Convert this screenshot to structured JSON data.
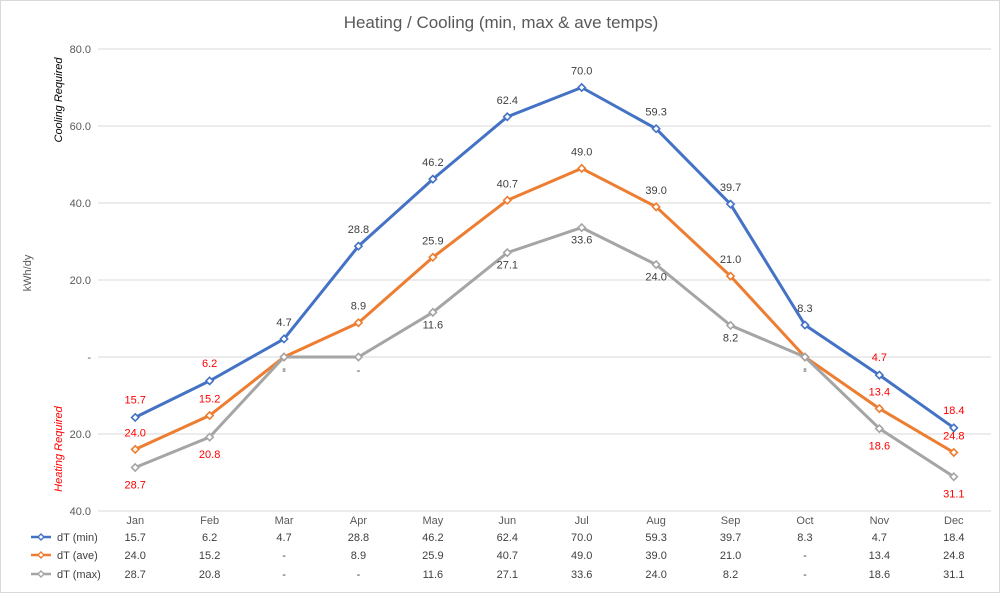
{
  "chart_data": {
    "type": "line",
    "title": "Heating / Cooling (min, max & ave temps)",
    "ylabel": "kWh/dy",
    "y_region_labels": {
      "cooling": "Cooling Required",
      "heating": "Heating Required"
    },
    "ylim": [
      -40,
      80
    ],
    "y_tick_values": [
      80,
      60,
      40,
      20,
      0,
      -20,
      -40
    ],
    "y_tick_labels": [
      "80.0",
      "60.0",
      "40.0",
      "20.0",
      "-",
      "20.0",
      "40.0"
    ],
    "categories": [
      "Jan",
      "Feb",
      "Mar",
      "Apr",
      "May",
      "Jun",
      "Jul",
      "Aug",
      "Sep",
      "Oct",
      "Nov",
      "Dec"
    ],
    "grid": true,
    "legend": "data-table-below",
    "series": [
      {
        "name": "dT (min)",
        "color": "#4472c4",
        "values": [
          -15.7,
          -6.2,
          4.7,
          28.8,
          46.2,
          62.4,
          70.0,
          59.3,
          39.7,
          8.3,
          -4.7,
          -18.4
        ],
        "labels": [
          "15.7",
          "6.2",
          "4.7",
          "28.8",
          "46.2",
          "62.4",
          "70.0",
          "59.3",
          "39.7",
          "8.3",
          "4.7",
          "18.4"
        ],
        "table": [
          "15.7",
          "6.2",
          "4.7",
          "28.8",
          "46.2",
          "62.4",
          "70.0",
          "59.3",
          "39.7",
          "8.3",
          "4.7",
          "18.4"
        ]
      },
      {
        "name": "dT (ave)",
        "color": "#ed7d31",
        "values": [
          -24.0,
          -15.2,
          0,
          8.9,
          25.9,
          40.7,
          49.0,
          39.0,
          21.0,
          0,
          -13.4,
          -24.8
        ],
        "labels": [
          "24.0",
          "15.2",
          "-",
          "8.9",
          "25.9",
          "40.7",
          "49.0",
          "39.0",
          "21.0",
          "-",
          "13.4",
          "24.8"
        ],
        "table": [
          "24.0",
          "15.2",
          "-",
          "8.9",
          "25.9",
          "40.7",
          "49.0",
          "39.0",
          "21.0",
          "-",
          "13.4",
          "24.8"
        ]
      },
      {
        "name": "dT (max)",
        "color": "#a5a5a5",
        "values": [
          -28.7,
          -20.8,
          0,
          0,
          11.6,
          27.1,
          33.6,
          24.0,
          8.2,
          0,
          -18.6,
          -31.1
        ],
        "labels": [
          "28.7",
          "20.8",
          "-",
          "-",
          "11.6",
          "27.1",
          "33.6",
          "24.0",
          "8.2",
          "-",
          "18.6",
          "31.1"
        ],
        "table": [
          "28.7",
          "20.8",
          "-",
          "-",
          "11.6",
          "27.1",
          "33.6",
          "24.0",
          "8.2",
          "-",
          "18.6",
          "31.1"
        ]
      }
    ],
    "heating_label_color": "#ff0000",
    "cooling_label_color": "#000000",
    "neutral_label_color": "#404040"
  }
}
